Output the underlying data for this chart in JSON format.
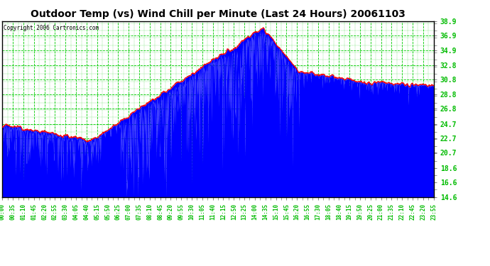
{
  "title": "Outdoor Temp (vs) Wind Chill per Minute (Last 24 Hours) 20061103",
  "copyright": "Copyright 2006 Cartronics.com",
  "background_color": "#ffffff",
  "plot_bg_color": "#ffffff",
  "grid_color": "#00cc00",
  "bar_color": "#0000ff",
  "line_color": "#ff0000",
  "tick_label_color": "#00bb00",
  "title_color": "#000000",
  "ymin": 14.6,
  "ymax": 38.9,
  "yticks": [
    14.6,
    16.6,
    18.6,
    20.7,
    22.7,
    24.7,
    26.8,
    28.8,
    30.8,
    32.8,
    34.9,
    36.9,
    38.9
  ],
  "xtick_labels": [
    "00:00",
    "00:35",
    "01:10",
    "01:45",
    "02:20",
    "02:55",
    "03:30",
    "04:05",
    "04:40",
    "05:15",
    "05:50",
    "06:25",
    "07:00",
    "07:35",
    "08:10",
    "08:45",
    "09:20",
    "09:55",
    "10:30",
    "11:05",
    "11:40",
    "12:15",
    "12:50",
    "13:25",
    "14:00",
    "14:35",
    "15:10",
    "15:45",
    "16:20",
    "16:55",
    "17:30",
    "18:05",
    "18:40",
    "19:15",
    "19:50",
    "20:25",
    "21:00",
    "21:35",
    "22:10",
    "22:45",
    "23:20",
    "23:55"
  ],
  "n_points": 1440,
  "seed": 123
}
